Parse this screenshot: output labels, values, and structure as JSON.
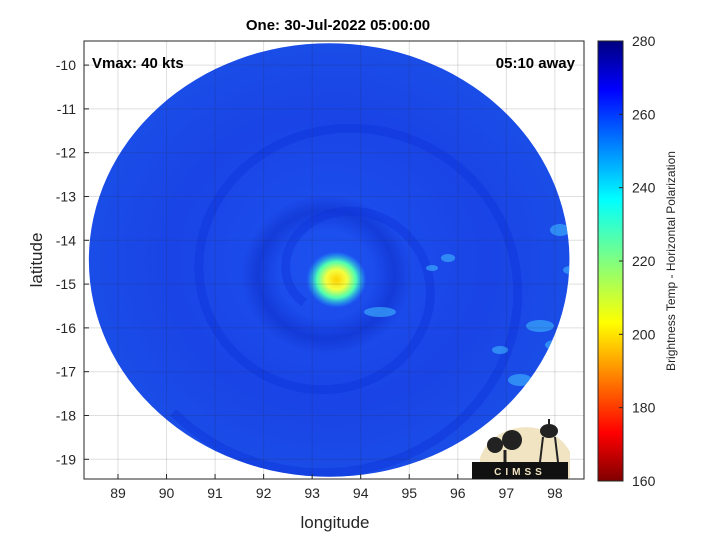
{
  "chart_data": {
    "type": "heatmap",
    "title": "One: 30-Jul-2022 05:00:00",
    "xlabel": "longitude",
    "ylabel": "latitude",
    "xlim": [
      88.3,
      98.6
    ],
    "ylim": [
      -19.45,
      -9.45
    ],
    "x_ticks": [
      "89",
      "90",
      "91",
      "92",
      "93",
      "94",
      "95",
      "96",
      "97",
      "98"
    ],
    "y_ticks": [
      "-10",
      "-11",
      "-12",
      "-13",
      "-14",
      "-15",
      "-16",
      "-17",
      "-18",
      "-19"
    ],
    "grid": true,
    "annotations": {
      "vmax": "Vmax: 40 kts",
      "away": "05:10 away"
    },
    "swath": {
      "center_lon": 93.35,
      "center_lat": -14.45,
      "radius_lon": 4.95,
      "radius_lat": 4.95
    },
    "cold_core": {
      "lon": 93.5,
      "lat": -14.9,
      "min_temp_k": 205
    },
    "colorbar": {
      "label": "Brightness Temp - Horizontal Polarization",
      "range": [
        160,
        280
      ],
      "ticks": [
        "160",
        "180",
        "200",
        "220",
        "240",
        "260",
        "280"
      ],
      "colormap": "jet"
    },
    "logo_text": "CIMSS"
  },
  "colors": {
    "background_field": "#1a40e8",
    "eye_yellow": "#ffe600"
  }
}
